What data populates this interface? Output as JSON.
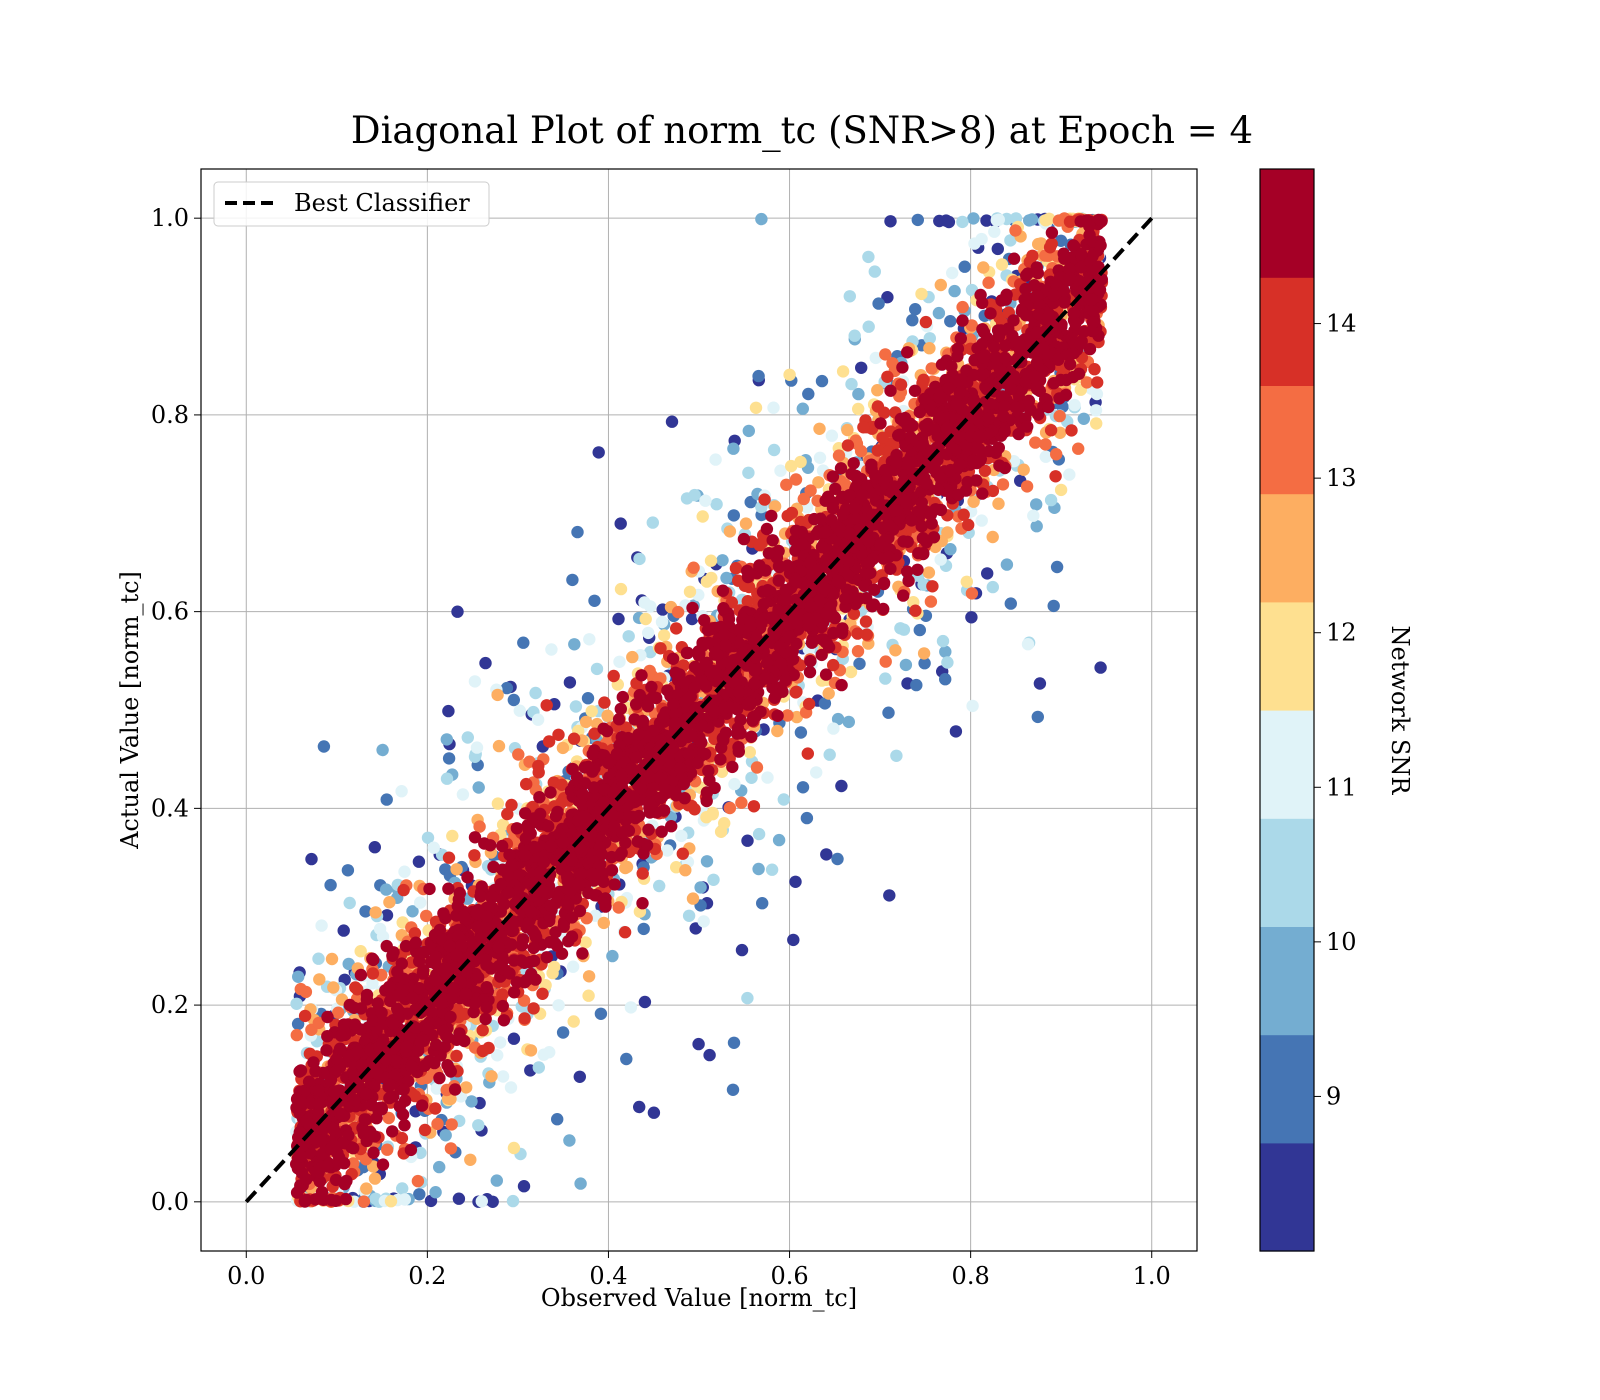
{
  "chart_data": {
    "type": "scatter",
    "title": "Diagonal Plot of norm_tc (SNR>8) at Epoch = 4",
    "xlabel": "Observed Value [norm_tc]",
    "ylabel": "Actual Value [norm_tc]",
    "xlim": [
      -0.05,
      1.05
    ],
    "ylim": [
      -0.05,
      1.05
    ],
    "x_ticks": [
      "0.0",
      "0.2",
      "0.4",
      "0.6",
      "0.8",
      "1.0"
    ],
    "y_ticks": [
      "0.0",
      "0.2",
      "0.4",
      "0.6",
      "0.8",
      "1.0"
    ],
    "grid": true,
    "legend": {
      "placement": "top-left",
      "entries": [
        {
          "label": "Best Classifier",
          "style": "black dashed line"
        }
      ]
    },
    "reference_line": {
      "name": "Best Classifier",
      "x": [
        0.0,
        1.0
      ],
      "y": [
        0.0,
        1.0
      ],
      "color": "#000000",
      "dash": true
    },
    "colorbar": {
      "label": "Network SNR",
      "range": [
        8,
        15
      ],
      "ticks": [
        "9",
        "10",
        "11",
        "12",
        "13",
        "14"
      ],
      "tick_values": [
        9,
        10,
        11,
        12,
        13,
        14
      ],
      "bins": 10,
      "colors": [
        "#313695",
        "#4575b4",
        "#74add1",
        "#abd9e9",
        "#e0f3f8",
        "#fee090",
        "#fdae61",
        "#f46d43",
        "#d73027",
        "#a50026"
      ]
    },
    "scatter_summary": {
      "n_points_approx": 50000,
      "x_range": [
        0.05,
        0.95
      ],
      "y_range": [
        0.0,
        1.0
      ],
      "pattern": "points concentrated along y = x; high-SNR (dark red) points form a dense band near the diagonal, lower-SNR (blue) points scatter farther off-diagonal"
    }
  }
}
